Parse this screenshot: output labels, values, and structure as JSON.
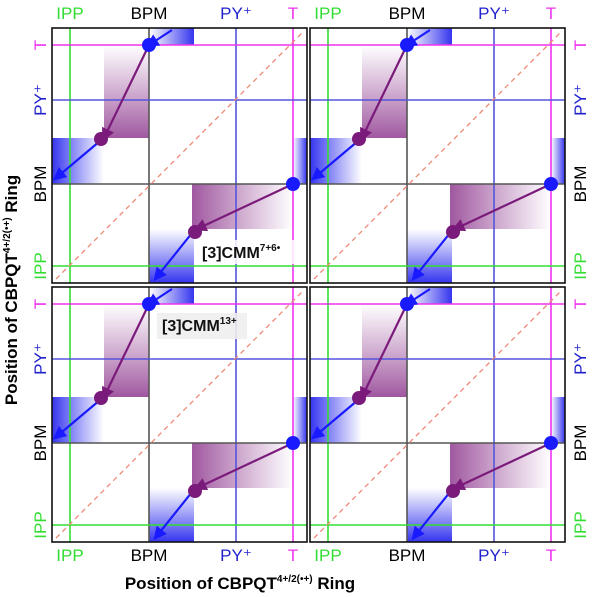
{
  "labels": {
    "ipp": "IPP",
    "bpm": "BPM",
    "py": "PY⁺",
    "t": "T"
  },
  "colors": {
    "ipp": "#33dd33",
    "bpm": "#000000",
    "py": "#2222cc",
    "t": "#ee33ee",
    "arrow_blue": "#1a1aff",
    "arrow_purple": "#7a1a7a",
    "diagonal": "#ee8877"
  },
  "axis_titles": {
    "x": "Position of CBPQT",
    "x_sup": "4+/2(•+)",
    "x_tail": " Ring",
    "y": "Position of CBPQT",
    "y_sup": "4+/2(•+)",
    "y_tail": " Ring"
  },
  "annotations": {
    "a1": "[3]CMM",
    "a1_sup": "7+6•",
    "a2": "[3]CMM",
    "a2_sup": "13+"
  }
}
